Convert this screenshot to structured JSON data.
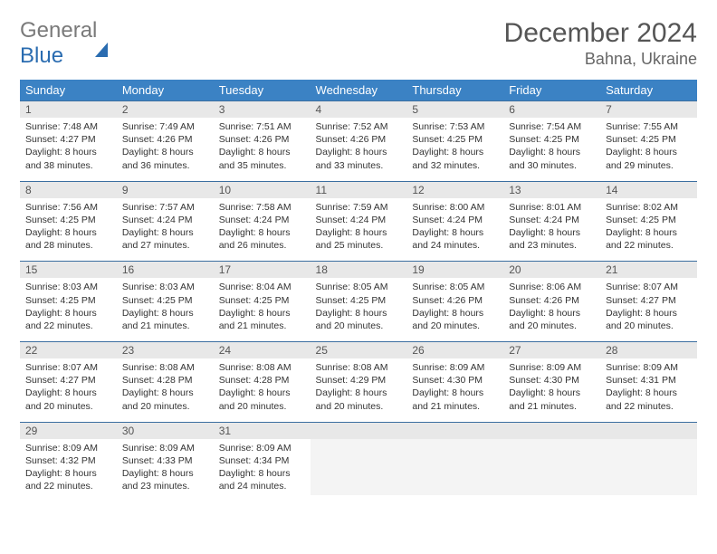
{
  "brand": {
    "part1": "General",
    "part2": "Blue"
  },
  "title": "December 2024",
  "location": "Bahna, Ukraine",
  "colors": {
    "header_bg": "#3b82c4",
    "header_text": "#ffffff",
    "daynum_bg": "#e8e8e8",
    "cell_border": "#3b6ea0",
    "brand_gray": "#7a7a7a",
    "brand_blue": "#2a6cb0"
  },
  "weekdays": [
    "Sunday",
    "Monday",
    "Tuesday",
    "Wednesday",
    "Thursday",
    "Friday",
    "Saturday"
  ],
  "weeks": [
    [
      {
        "n": "1",
        "sr": "Sunrise: 7:48 AM",
        "ss": "Sunset: 4:27 PM",
        "d1": "Daylight: 8 hours",
        "d2": "and 38 minutes."
      },
      {
        "n": "2",
        "sr": "Sunrise: 7:49 AM",
        "ss": "Sunset: 4:26 PM",
        "d1": "Daylight: 8 hours",
        "d2": "and 36 minutes."
      },
      {
        "n": "3",
        "sr": "Sunrise: 7:51 AM",
        "ss": "Sunset: 4:26 PM",
        "d1": "Daylight: 8 hours",
        "d2": "and 35 minutes."
      },
      {
        "n": "4",
        "sr": "Sunrise: 7:52 AM",
        "ss": "Sunset: 4:26 PM",
        "d1": "Daylight: 8 hours",
        "d2": "and 33 minutes."
      },
      {
        "n": "5",
        "sr": "Sunrise: 7:53 AM",
        "ss": "Sunset: 4:25 PM",
        "d1": "Daylight: 8 hours",
        "d2": "and 32 minutes."
      },
      {
        "n": "6",
        "sr": "Sunrise: 7:54 AM",
        "ss": "Sunset: 4:25 PM",
        "d1": "Daylight: 8 hours",
        "d2": "and 30 minutes."
      },
      {
        "n": "7",
        "sr": "Sunrise: 7:55 AM",
        "ss": "Sunset: 4:25 PM",
        "d1": "Daylight: 8 hours",
        "d2": "and 29 minutes."
      }
    ],
    [
      {
        "n": "8",
        "sr": "Sunrise: 7:56 AM",
        "ss": "Sunset: 4:25 PM",
        "d1": "Daylight: 8 hours",
        "d2": "and 28 minutes."
      },
      {
        "n": "9",
        "sr": "Sunrise: 7:57 AM",
        "ss": "Sunset: 4:24 PM",
        "d1": "Daylight: 8 hours",
        "d2": "and 27 minutes."
      },
      {
        "n": "10",
        "sr": "Sunrise: 7:58 AM",
        "ss": "Sunset: 4:24 PM",
        "d1": "Daylight: 8 hours",
        "d2": "and 26 minutes."
      },
      {
        "n": "11",
        "sr": "Sunrise: 7:59 AM",
        "ss": "Sunset: 4:24 PM",
        "d1": "Daylight: 8 hours",
        "d2": "and 25 minutes."
      },
      {
        "n": "12",
        "sr": "Sunrise: 8:00 AM",
        "ss": "Sunset: 4:24 PM",
        "d1": "Daylight: 8 hours",
        "d2": "and 24 minutes."
      },
      {
        "n": "13",
        "sr": "Sunrise: 8:01 AM",
        "ss": "Sunset: 4:24 PM",
        "d1": "Daylight: 8 hours",
        "d2": "and 23 minutes."
      },
      {
        "n": "14",
        "sr": "Sunrise: 8:02 AM",
        "ss": "Sunset: 4:25 PM",
        "d1": "Daylight: 8 hours",
        "d2": "and 22 minutes."
      }
    ],
    [
      {
        "n": "15",
        "sr": "Sunrise: 8:03 AM",
        "ss": "Sunset: 4:25 PM",
        "d1": "Daylight: 8 hours",
        "d2": "and 22 minutes."
      },
      {
        "n": "16",
        "sr": "Sunrise: 8:03 AM",
        "ss": "Sunset: 4:25 PM",
        "d1": "Daylight: 8 hours",
        "d2": "and 21 minutes."
      },
      {
        "n": "17",
        "sr": "Sunrise: 8:04 AM",
        "ss": "Sunset: 4:25 PM",
        "d1": "Daylight: 8 hours",
        "d2": "and 21 minutes."
      },
      {
        "n": "18",
        "sr": "Sunrise: 8:05 AM",
        "ss": "Sunset: 4:25 PM",
        "d1": "Daylight: 8 hours",
        "d2": "and 20 minutes."
      },
      {
        "n": "19",
        "sr": "Sunrise: 8:05 AM",
        "ss": "Sunset: 4:26 PM",
        "d1": "Daylight: 8 hours",
        "d2": "and 20 minutes."
      },
      {
        "n": "20",
        "sr": "Sunrise: 8:06 AM",
        "ss": "Sunset: 4:26 PM",
        "d1": "Daylight: 8 hours",
        "d2": "and 20 minutes."
      },
      {
        "n": "21",
        "sr": "Sunrise: 8:07 AM",
        "ss": "Sunset: 4:27 PM",
        "d1": "Daylight: 8 hours",
        "d2": "and 20 minutes."
      }
    ],
    [
      {
        "n": "22",
        "sr": "Sunrise: 8:07 AM",
        "ss": "Sunset: 4:27 PM",
        "d1": "Daylight: 8 hours",
        "d2": "and 20 minutes."
      },
      {
        "n": "23",
        "sr": "Sunrise: 8:08 AM",
        "ss": "Sunset: 4:28 PM",
        "d1": "Daylight: 8 hours",
        "d2": "and 20 minutes."
      },
      {
        "n": "24",
        "sr": "Sunrise: 8:08 AM",
        "ss": "Sunset: 4:28 PM",
        "d1": "Daylight: 8 hours",
        "d2": "and 20 minutes."
      },
      {
        "n": "25",
        "sr": "Sunrise: 8:08 AM",
        "ss": "Sunset: 4:29 PM",
        "d1": "Daylight: 8 hours",
        "d2": "and 20 minutes."
      },
      {
        "n": "26",
        "sr": "Sunrise: 8:09 AM",
        "ss": "Sunset: 4:30 PM",
        "d1": "Daylight: 8 hours",
        "d2": "and 21 minutes."
      },
      {
        "n": "27",
        "sr": "Sunrise: 8:09 AM",
        "ss": "Sunset: 4:30 PM",
        "d1": "Daylight: 8 hours",
        "d2": "and 21 minutes."
      },
      {
        "n": "28",
        "sr": "Sunrise: 8:09 AM",
        "ss": "Sunset: 4:31 PM",
        "d1": "Daylight: 8 hours",
        "d2": "and 22 minutes."
      }
    ],
    [
      {
        "n": "29",
        "sr": "Sunrise: 8:09 AM",
        "ss": "Sunset: 4:32 PM",
        "d1": "Daylight: 8 hours",
        "d2": "and 22 minutes."
      },
      {
        "n": "30",
        "sr": "Sunrise: 8:09 AM",
        "ss": "Sunset: 4:33 PM",
        "d1": "Daylight: 8 hours",
        "d2": "and 23 minutes."
      },
      {
        "n": "31",
        "sr": "Sunrise: 8:09 AM",
        "ss": "Sunset: 4:34 PM",
        "d1": "Daylight: 8 hours",
        "d2": "and 24 minutes."
      },
      {
        "empty": true
      },
      {
        "empty": true
      },
      {
        "empty": true
      },
      {
        "empty": true
      }
    ]
  ]
}
